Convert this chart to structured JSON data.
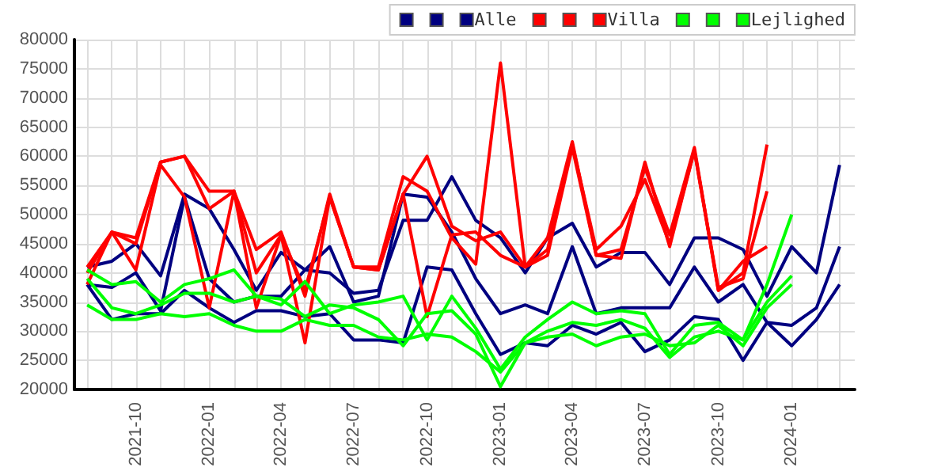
{
  "chart_data": {
    "type": "line",
    "x": [
      "2021-08",
      "2021-09",
      "2021-10",
      "2021-11",
      "2021-12",
      "2022-01",
      "2022-02",
      "2022-03",
      "2022-04",
      "2022-05",
      "2022-06",
      "2022-07",
      "2022-08",
      "2022-09",
      "2022-10",
      "2022-11",
      "2022-12",
      "2023-01",
      "2023-02",
      "2023-03",
      "2023-04",
      "2023-05",
      "2023-06",
      "2023-07",
      "2023-08",
      "2023-09",
      "2023-10",
      "2023-11",
      "2023-12",
      "2024-01",
      "2024-02",
      "2024-03"
    ],
    "series": [
      {
        "color": "#000080",
        "values": [
          41000,
          42000,
          45000,
          39500,
          53500,
          51000,
          44000,
          37000,
          43500,
          40500,
          40000,
          36500,
          37000,
          49000,
          49000,
          56500,
          49000,
          46000,
          40000,
          46000,
          48500,
          41000,
          43500,
          43500,
          38000,
          46000,
          46000,
          44000,
          36000,
          44500,
          40000,
          58500
        ]
      },
      {
        "color": "#000080",
        "values": [
          38000,
          37500,
          40000,
          33500,
          53000,
          39000,
          35000,
          36000,
          36000,
          40500,
          44500,
          35000,
          36000,
          53500,
          53000,
          47000,
          39000,
          33000,
          34500,
          33000,
          44500,
          33000,
          34000,
          34000,
          34000,
          41000,
          35000,
          38000,
          31500,
          31000,
          34000,
          44500
        ]
      },
      {
        "name": "Alle",
        "color": "#000080",
        "values": [
          38000,
          32000,
          33000,
          33000,
          37000,
          34000,
          31500,
          33500,
          33500,
          32500,
          33000,
          28500,
          28500,
          28000,
          41000,
          40500,
          33000,
          26000,
          28000,
          27500,
          31000,
          29500,
          31500,
          26500,
          28500,
          32500,
          32000,
          25000,
          31500,
          27500,
          32000,
          38000
        ]
      },
      {
        "color": "#ff0000",
        "values": [
          38000,
          47000,
          46000,
          59000,
          60000,
          54000,
          54000,
          44000,
          47000,
          36000,
          53500,
          41000,
          41000,
          56500,
          54000,
          46000,
          41500,
          76000,
          41000,
          46000,
          62500,
          43000,
          44000,
          58000,
          46500,
          61500,
          37000,
          40000,
          62000,
          null,
          null,
          null
        ]
      },
      {
        "color": "#ff0000",
        "values": [
          40000,
          47000,
          45000,
          59000,
          60000,
          51000,
          54000,
          40000,
          46500,
          28000,
          53000,
          41000,
          40500,
          53500,
          60000,
          48000,
          45500,
          47000,
          41000,
          44000,
          62000,
          44000,
          48000,
          56000,
          45000,
          61000,
          37500,
          39000,
          54000,
          null,
          null,
          null
        ]
      },
      {
        "name": "Villa",
        "color": "#ff0000",
        "values": [
          41000,
          47000,
          40500,
          58500,
          53000,
          34000,
          54000,
          34000,
          46500,
          37000,
          53000,
          41000,
          40500,
          53500,
          32500,
          46500,
          47000,
          43000,
          41000,
          43000,
          61500,
          43000,
          42500,
          59000,
          44500,
          61000,
          37000,
          42000,
          44500,
          null,
          null,
          null
        ]
      },
      {
        "color": "#00ff00",
        "values": [
          40500,
          38000,
          38500,
          35000,
          38000,
          39000,
          40500,
          36000,
          34500,
          38500,
          33000,
          34500,
          35000,
          36000,
          28500,
          36000,
          30500,
          23500,
          29000,
          32000,
          35000,
          33000,
          33500,
          33000,
          26000,
          31000,
          31500,
          28500,
          38000,
          50000,
          null,
          null
        ]
      },
      {
        "color": "#00ff00",
        "values": [
          39000,
          34000,
          33000,
          34500,
          36500,
          36500,
          35000,
          36000,
          35500,
          32500,
          34500,
          34000,
          32000,
          27500,
          33000,
          33500,
          29500,
          20500,
          28000,
          30000,
          31500,
          31000,
          32000,
          30500,
          25500,
          29000,
          30000,
          28500,
          35000,
          39500,
          null,
          null
        ]
      },
      {
        "name": "Lejlighed",
        "color": "#00ff00",
        "values": [
          34500,
          32000,
          32000,
          33000,
          32500,
          33000,
          31000,
          30000,
          30000,
          32000,
          31000,
          31000,
          29000,
          28500,
          29500,
          29000,
          26500,
          23000,
          28000,
          29000,
          29500,
          27500,
          29000,
          29500,
          27500,
          28000,
          31000,
          27500,
          34000,
          38000,
          null,
          null
        ]
      }
    ],
    "xlim": [
      "2021-07-16",
      "2024-03-20"
    ],
    "xticks": [
      {
        "value": "2021-08",
        "label": null
      },
      {
        "value": "2021-09",
        "label": null
      },
      {
        "value": "2021-10",
        "label": "2021-10"
      },
      {
        "value": "2021-11",
        "label": null
      },
      {
        "value": "2021-12",
        "label": null
      },
      {
        "value": "2022-01",
        "label": "2022-01"
      },
      {
        "value": "2022-02",
        "label": null
      },
      {
        "value": "2022-03",
        "label": null
      },
      {
        "value": "2022-04",
        "label": "2022-04"
      },
      {
        "value": "2022-05",
        "label": null
      },
      {
        "value": "2022-06",
        "label": null
      },
      {
        "value": "2022-07",
        "label": "2022-07"
      },
      {
        "value": "2022-08",
        "label": null
      },
      {
        "value": "2022-09",
        "label": null
      },
      {
        "value": "2022-10",
        "label": "2022-10"
      },
      {
        "value": "2022-11",
        "label": null
      },
      {
        "value": "2022-12",
        "label": null
      },
      {
        "value": "2023-01",
        "label": "2023-01"
      },
      {
        "value": "2023-02",
        "label": null
      },
      {
        "value": "2023-03",
        "label": null
      },
      {
        "value": "2023-04",
        "label": "2023-04"
      },
      {
        "value": "2023-05",
        "label": null
      },
      {
        "value": "2023-06",
        "label": null
      },
      {
        "value": "2023-07",
        "label": "2023-07"
      },
      {
        "value": "2023-08",
        "label": null
      },
      {
        "value": "2023-09",
        "label": null
      },
      {
        "value": "2023-10",
        "label": "2023-10"
      },
      {
        "value": "2023-11",
        "label": null
      },
      {
        "value": "2023-12",
        "label": null
      },
      {
        "value": "2024-01",
        "label": "2024-01"
      },
      {
        "value": "2024-02",
        "label": null
      },
      {
        "value": "2024-03",
        "label": null
      }
    ],
    "ylim": [
      20000,
      80000
    ],
    "yticks": [
      20000,
      25000,
      30000,
      35000,
      40000,
      45000,
      50000,
      55000,
      60000,
      65000,
      70000,
      75000,
      80000
    ],
    "grid": true,
    "legend": "top right",
    "marker": "none",
    "line_style": "solid"
  }
}
